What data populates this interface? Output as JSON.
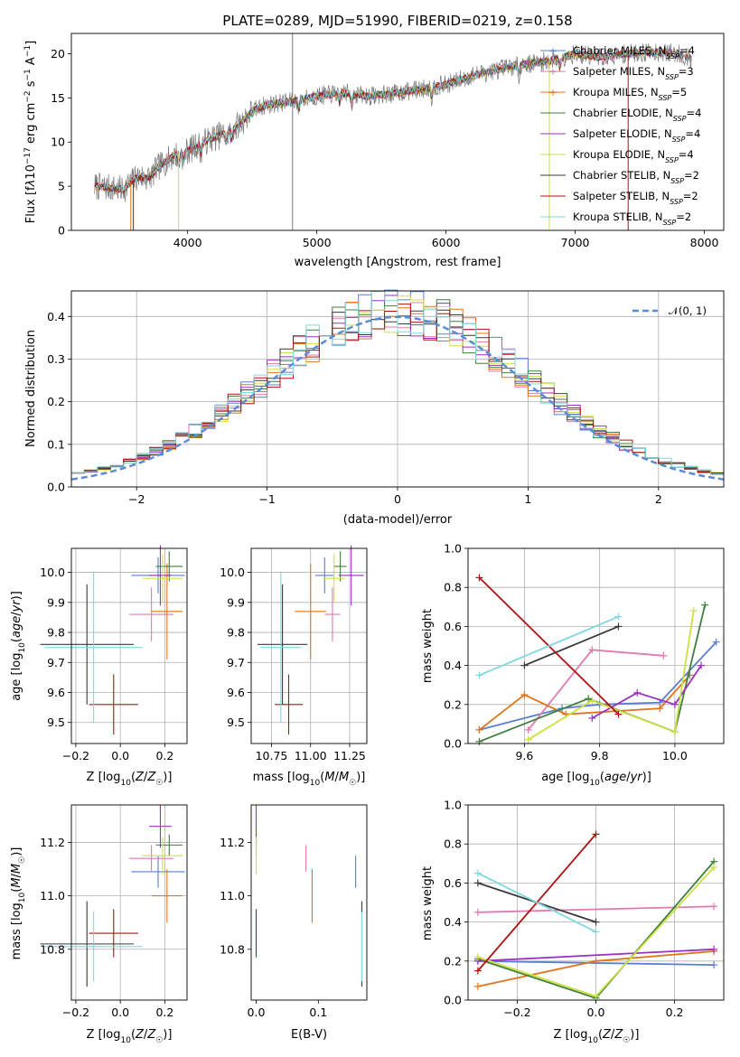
{
  "chart_data": [
    {
      "type": "line",
      "title": "PLATE=0289, MJD=51990, FIBERID=0219, z=0.158",
      "xlabel": "wavelength [Angstrom, rest frame]",
      "ylabel": "Flux [f_λ 10^-17 erg cm^-2 s^-1 A^-1]",
      "xlim": [
        3100,
        8150
      ],
      "ylim": [
        0,
        22.3
      ],
      "xticks": [
        "4000",
        "5000",
        "6000",
        "7000",
        "8000"
      ],
      "yticks": [
        "0",
        "5",
        "10",
        "15",
        "20"
      ],
      "grid": false,
      "legend_position": "upper right",
      "spectrum_trend": {
        "x": [
          3280,
          3400,
          3500,
          3600,
          3700,
          3800,
          3900,
          4000,
          4100,
          4200,
          4300,
          4400,
          4500,
          4600,
          4800,
          5000,
          5200,
          5400,
          5600,
          5800,
          6000,
          6200,
          6400,
          6600,
          6800,
          7000,
          7200,
          7400,
          7600,
          7800,
          7900
        ],
        "y": [
          5.0,
          4.8,
          4.6,
          6.0,
          7.0,
          7.5,
          8.5,
          9.0,
          9.8,
          10.5,
          11.0,
          12.0,
          13.5,
          14.2,
          14.6,
          15.2,
          15.6,
          15.2,
          15.5,
          16.0,
          16.5,
          17.5,
          18.2,
          18.8,
          19.2,
          20.0,
          19.6,
          20.0,
          20.2,
          20.0,
          19.5
        ]
      },
      "series": [
        {
          "name": "Chabrier MILES, N_SSP=4",
          "label_main": "Chabrier MILES, N",
          "label_sub": "SSP",
          "label_end": "=4",
          "color": "#5a7fd1"
        },
        {
          "name": "Salpeter MILES, N_SSP=3",
          "label_main": "Salpeter MILES, N",
          "label_sub": "SSP",
          "label_end": "=3",
          "color": "#e07ab0"
        },
        {
          "name": "Kroupa MILES, N_SSP=5",
          "label_main": "Kroupa MILES, N",
          "label_sub": "SSP",
          "label_end": "=5",
          "color": "#e0741a"
        },
        {
          "name": "Chabrier ELODIE, N_SSP=4",
          "label_main": "Chabrier ELODIE, N",
          "label_sub": "SSP",
          "label_end": "=4",
          "color": "#3f7f3f"
        },
        {
          "name": "Salpeter ELODIE, N_SSP=4",
          "label_main": "Salpeter ELODIE, N",
          "label_sub": "SSP",
          "label_end": "=4",
          "color": "#9b2fbf"
        },
        {
          "name": "Kroupa ELODIE, N_SSP=4",
          "label_main": "Kroupa ELODIE, N",
          "label_sub": "SSP",
          "label_end": "=4",
          "color": "#cde042"
        },
        {
          "name": "Chabrier STELIB, N_SSP=2",
          "label_main": "Chabrier STELIB, N",
          "label_sub": "SSP",
          "label_end": "=2",
          "color": "#3a3a3a"
        },
        {
          "name": "Salpeter STELIB, N_SSP=2",
          "label_main": "Salpeter STELIB, N",
          "label_sub": "SSP",
          "label_end": "=2",
          "color": "#b01010"
        },
        {
          "name": "Kroupa STELIB, N_SSP=2",
          "label_main": "Kroupa STELIB, N",
          "label_sub": "SSP",
          "label_end": "=2",
          "color": "#7fd8e0"
        }
      ]
    },
    {
      "type": "line",
      "xlabel": "(data-model)/error",
      "ylabel": "Normed distribution",
      "xlim": [
        -2.5,
        2.5
      ],
      "ylim": [
        0,
        0.46
      ],
      "xticks": [
        "−2",
        "−1",
        "0",
        "1",
        "2"
      ],
      "yticks": [
        "0.0",
        "0.1",
        "0.2",
        "0.3",
        "0.4"
      ],
      "grid": true,
      "legend": "𝒩(0, 1)",
      "legend_position": "upper right",
      "reference_curve": "standard normal pdf, dashed",
      "histogram_bin_width": 0.1
    },
    {
      "type": "scatter",
      "panel": "age vs Z",
      "xlabel": "Z [log10(Z/Z☉)]",
      "ylabel": "age [log10(age/yr)]",
      "xlim": [
        -0.22,
        0.3
      ],
      "ylim": [
        9.43,
        10.08
      ],
      "xticks": [
        "−0.2",
        "0.0",
        "0.2"
      ],
      "yticks": [
        "9.5",
        "9.6",
        "9.7",
        "9.8",
        "9.9",
        "10.0"
      ],
      "grid": true
    },
    {
      "type": "scatter",
      "panel": "age vs mass",
      "xlabel": "mass [log10(M/M☉)]",
      "ylabel": "",
      "xlim": [
        10.62,
        11.36
      ],
      "ylim": [
        9.43,
        10.08
      ],
      "xticks": [
        "10.75",
        "11.00",
        "11.25"
      ],
      "yticks": [
        "9.5",
        "9.6",
        "9.7",
        "9.8",
        "9.9",
        "10.0"
      ],
      "grid": true
    },
    {
      "type": "line",
      "panel": "mass weight vs age",
      "xlabel": "age [log10(age/yr)]",
      "ylabel": "mass weight",
      "xlim": [
        9.45,
        10.13
      ],
      "ylim": [
        0,
        1.0
      ],
      "xticks": [
        "9.6",
        "9.8",
        "10.0"
      ],
      "yticks": [
        "0.0",
        "0.2",
        "0.4",
        "0.6",
        "0.8",
        "1.0"
      ],
      "grid": true
    },
    {
      "type": "scatter",
      "panel": "mass vs Z",
      "xlabel": "Z [log10(Z/Z☉)]",
      "ylabel": "mass [log10(M/M☉)]",
      "xlim": [
        -0.22,
        0.3
      ],
      "ylim": [
        10.61,
        11.34
      ],
      "xticks": [
        "−0.2",
        "0.0",
        "0.2"
      ],
      "yticks": [
        "10.8",
        "11.0",
        "11.2"
      ],
      "grid": true
    },
    {
      "type": "scatter",
      "panel": "mass vs E(B-V)",
      "xlabel": "E(B-V)",
      "ylabel": "",
      "xlim": [
        -0.008,
        0.178
      ],
      "ylim": [
        10.61,
        11.34
      ],
      "xticks": [
        "0.0",
        "0.1"
      ],
      "yticks": [
        "10.8",
        "11.0",
        "11.2"
      ],
      "grid": false
    },
    {
      "type": "line",
      "panel": "mass weight vs Z",
      "xlabel": "Z [log10(Z/Z☉)]",
      "ylabel": "mass weight",
      "xlim": [
        -0.325,
        0.325
      ],
      "ylim": [
        0,
        1.0
      ],
      "xticks": [
        "−0.2",
        "0.0",
        "0.2"
      ],
      "yticks": [
        "0.0",
        "0.2",
        "0.4",
        "0.6",
        "0.8",
        "1.0"
      ],
      "grid": true
    }
  ],
  "models": [
    {
      "color": "#5a7fd1",
      "Z": 0.17,
      "Zerr": 0.12,
      "age": 9.99,
      "ageErr": 0.06,
      "mass": 11.09,
      "massErr": 0.06,
      "ebv": 0.16,
      "ebvErr": 0.05,
      "ages": [
        9.48,
        9.7,
        9.8,
        9.96,
        10.11
      ],
      "wAge": [
        0.07,
        0.18,
        0.2,
        0.21,
        0.52
      ],
      "zs": [
        -0.3,
        0.3
      ],
      "wZ": [
        0.2,
        0.18
      ]
    },
    {
      "color": "#e07ab0",
      "Z": 0.14,
      "Zerr": 0.1,
      "age": 9.86,
      "ageErr": 0.09,
      "mass": 11.14,
      "massErr": 0.05,
      "ebv": 0.08,
      "ebvErr": 0.07,
      "ages": [
        9.61,
        9.78,
        9.97
      ],
      "wAge": [
        0.07,
        0.48,
        0.45
      ],
      "zs": [
        -0.3,
        0.3
      ],
      "wZ": [
        0.45,
        0.48
      ]
    },
    {
      "color": "#e0741a",
      "Z": 0.21,
      "Zerr": 0.07,
      "age": 9.87,
      "ageErr": 0.16,
      "mass": 11.0,
      "massErr": 0.1,
      "ebv": 0.09,
      "ebvErr": 0.09,
      "ages": [
        9.48,
        9.6,
        9.71,
        9.96,
        10.04
      ],
      "wAge": [
        0.07,
        0.25,
        0.15,
        0.18,
        0.35
      ],
      "zs": [
        -0.3,
        0.0,
        0.3
      ],
      "wZ": [
        0.07,
        0.2,
        0.25
      ]
    },
    {
      "color": "#3f7f3f",
      "Z": 0.22,
      "Zerr": 0.06,
      "age": 10.02,
      "ageErr": 0.05,
      "mass": 11.19,
      "massErr": 0.04,
      "ebv": 0.0,
      "ebvErr": 0.02,
      "ages": [
        9.48,
        9.77,
        10.0,
        10.08
      ],
      "wAge": [
        0.01,
        0.23,
        0.06,
        0.71
      ],
      "zs": [
        -0.3,
        0.0,
        0.3
      ],
      "wZ": [
        0.21,
        0.01,
        0.71
      ]
    },
    {
      "color": "#9b2fbf",
      "Z": 0.18,
      "Zerr": 0.05,
      "age": 9.99,
      "ageErr": 0.1,
      "mass": 11.26,
      "massErr": 0.08,
      "ebv": 0.0,
      "ebvErr": 0.02,
      "ages": [
        9.78,
        9.9,
        10.0,
        10.07
      ],
      "wAge": [
        0.13,
        0.26,
        0.2,
        0.4
      ],
      "zs": [
        -0.3,
        0.3
      ],
      "wZ": [
        0.2,
        0.26
      ]
    },
    {
      "color": "#cde042",
      "Z": 0.19,
      "Zerr": 0.09,
      "age": 9.98,
      "ageErr": 0.08,
      "mass": 11.15,
      "massErr": 0.07,
      "ebv": 0.0,
      "ebvErr": 0.06,
      "ages": [
        9.61,
        9.78,
        10.0,
        10.05
      ],
      "wAge": [
        0.02,
        0.22,
        0.06,
        0.68
      ],
      "zs": [
        -0.3,
        0.0,
        0.3
      ],
      "wZ": [
        0.22,
        0.02,
        0.68
      ]
    },
    {
      "color": "#3a3a3a",
      "Z": -0.15,
      "Zerr": 0.21,
      "age": 9.76,
      "ageErr": 0.2,
      "mass": 10.82,
      "massErr": 0.16,
      "ebv": 0.17,
      "ebvErr": 0.08,
      "ages": [
        9.6,
        9.85
      ],
      "wAge": [
        0.4,
        0.6
      ],
      "zs": [
        -0.3,
        0.0
      ],
      "wZ": [
        0.6,
        0.4
      ]
    },
    {
      "color": "#b01010",
      "Z": -0.03,
      "Zerr": 0.11,
      "age": 9.56,
      "ageErr": 0.1,
      "mass": 10.86,
      "massErr": 0.09,
      "ebv": 0.0,
      "ebvErr": 0.0,
      "ages": [
        9.48,
        9.85
      ],
      "wAge": [
        0.85,
        0.15
      ],
      "zs": [
        -0.3,
        0.0
      ],
      "wZ": [
        0.15,
        0.85
      ]
    },
    {
      "color": "#7fd8e0",
      "Z": -0.12,
      "Zerr": 0.22,
      "age": 9.75,
      "ageErr": 0.25,
      "mass": 10.81,
      "massErr": 0.13,
      "ebv": 0.17,
      "ebvErr": 0.05,
      "ages": [
        9.48,
        9.85
      ],
      "wAge": [
        0.35,
        0.65
      ],
      "zs": [
        -0.3,
        0.0
      ],
      "wZ": [
        0.65,
        0.35
      ]
    }
  ]
}
